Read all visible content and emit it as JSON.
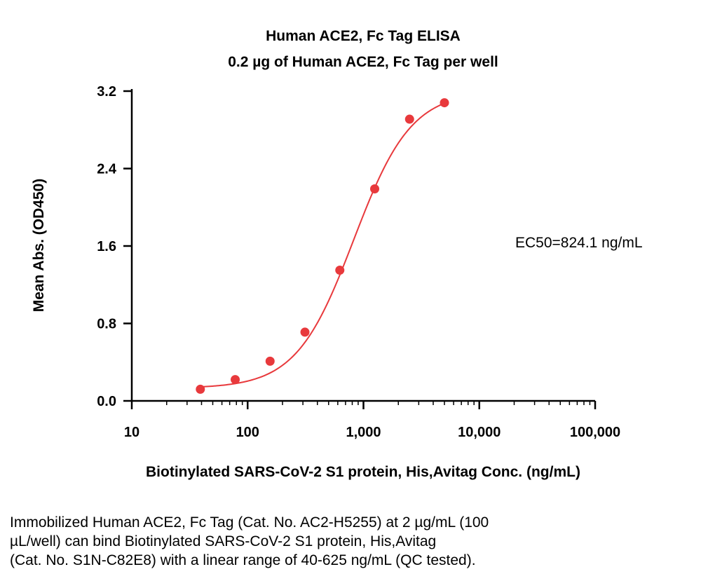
{
  "chart_data": {
    "type": "scatter",
    "title": "Human ACE2, Fc Tag ELISA",
    "subtitle": "0.2 µg of Human ACE2, Fc Tag per well",
    "xlabel": "Biotinylated SARS-CoV-2 S1 protein, His,Avitag Conc. (ng/mL)",
    "ylabel": "Mean Abs. (OD450)",
    "xscale": "log",
    "xlim": [
      10,
      100000
    ],
    "ylim": [
      0,
      3.2
    ],
    "x_ticks": [
      10,
      100,
      1000,
      10000,
      100000
    ],
    "x_tick_labels": [
      "10",
      "100",
      "1,000",
      "10,000",
      "100,000"
    ],
    "y_ticks": [
      0,
      0.8,
      1.6,
      2.4,
      3.2
    ],
    "y_tick_labels": [
      "0.0",
      "0.8",
      "1.6",
      "2.4",
      "3.2"
    ],
    "series": [
      {
        "name": "ELISA",
        "color": "#e8393c",
        "x": [
          39.06,
          78.13,
          156.25,
          312.5,
          625,
          1250,
          2500,
          5000
        ],
        "y": [
          0.12,
          0.22,
          0.41,
          0.71,
          1.35,
          2.19,
          2.91,
          3.08
        ]
      }
    ],
    "fit": {
      "model": "4PL",
      "bottom": 0.13,
      "top": 3.2,
      "ec50": 824.1,
      "hill": 1.75,
      "x_range": [
        39.06,
        5000
      ],
      "color": "#e8393c"
    },
    "annotation": "EC50=824.1 ng/mL",
    "grid": false,
    "legend": "none"
  },
  "caption": {
    "lines": [
      "Immobilized Human ACE2, Fc Tag (Cat. No. AC2-H5255) at 2 µg/mL (100",
      "µL/well) can bind Biotinylated SARS-CoV-2 S1 protein, His,Avitag",
      "(Cat. No. S1N-C82E8) with a linear range of 40-625 ng/mL (QC tested)."
    ]
  }
}
